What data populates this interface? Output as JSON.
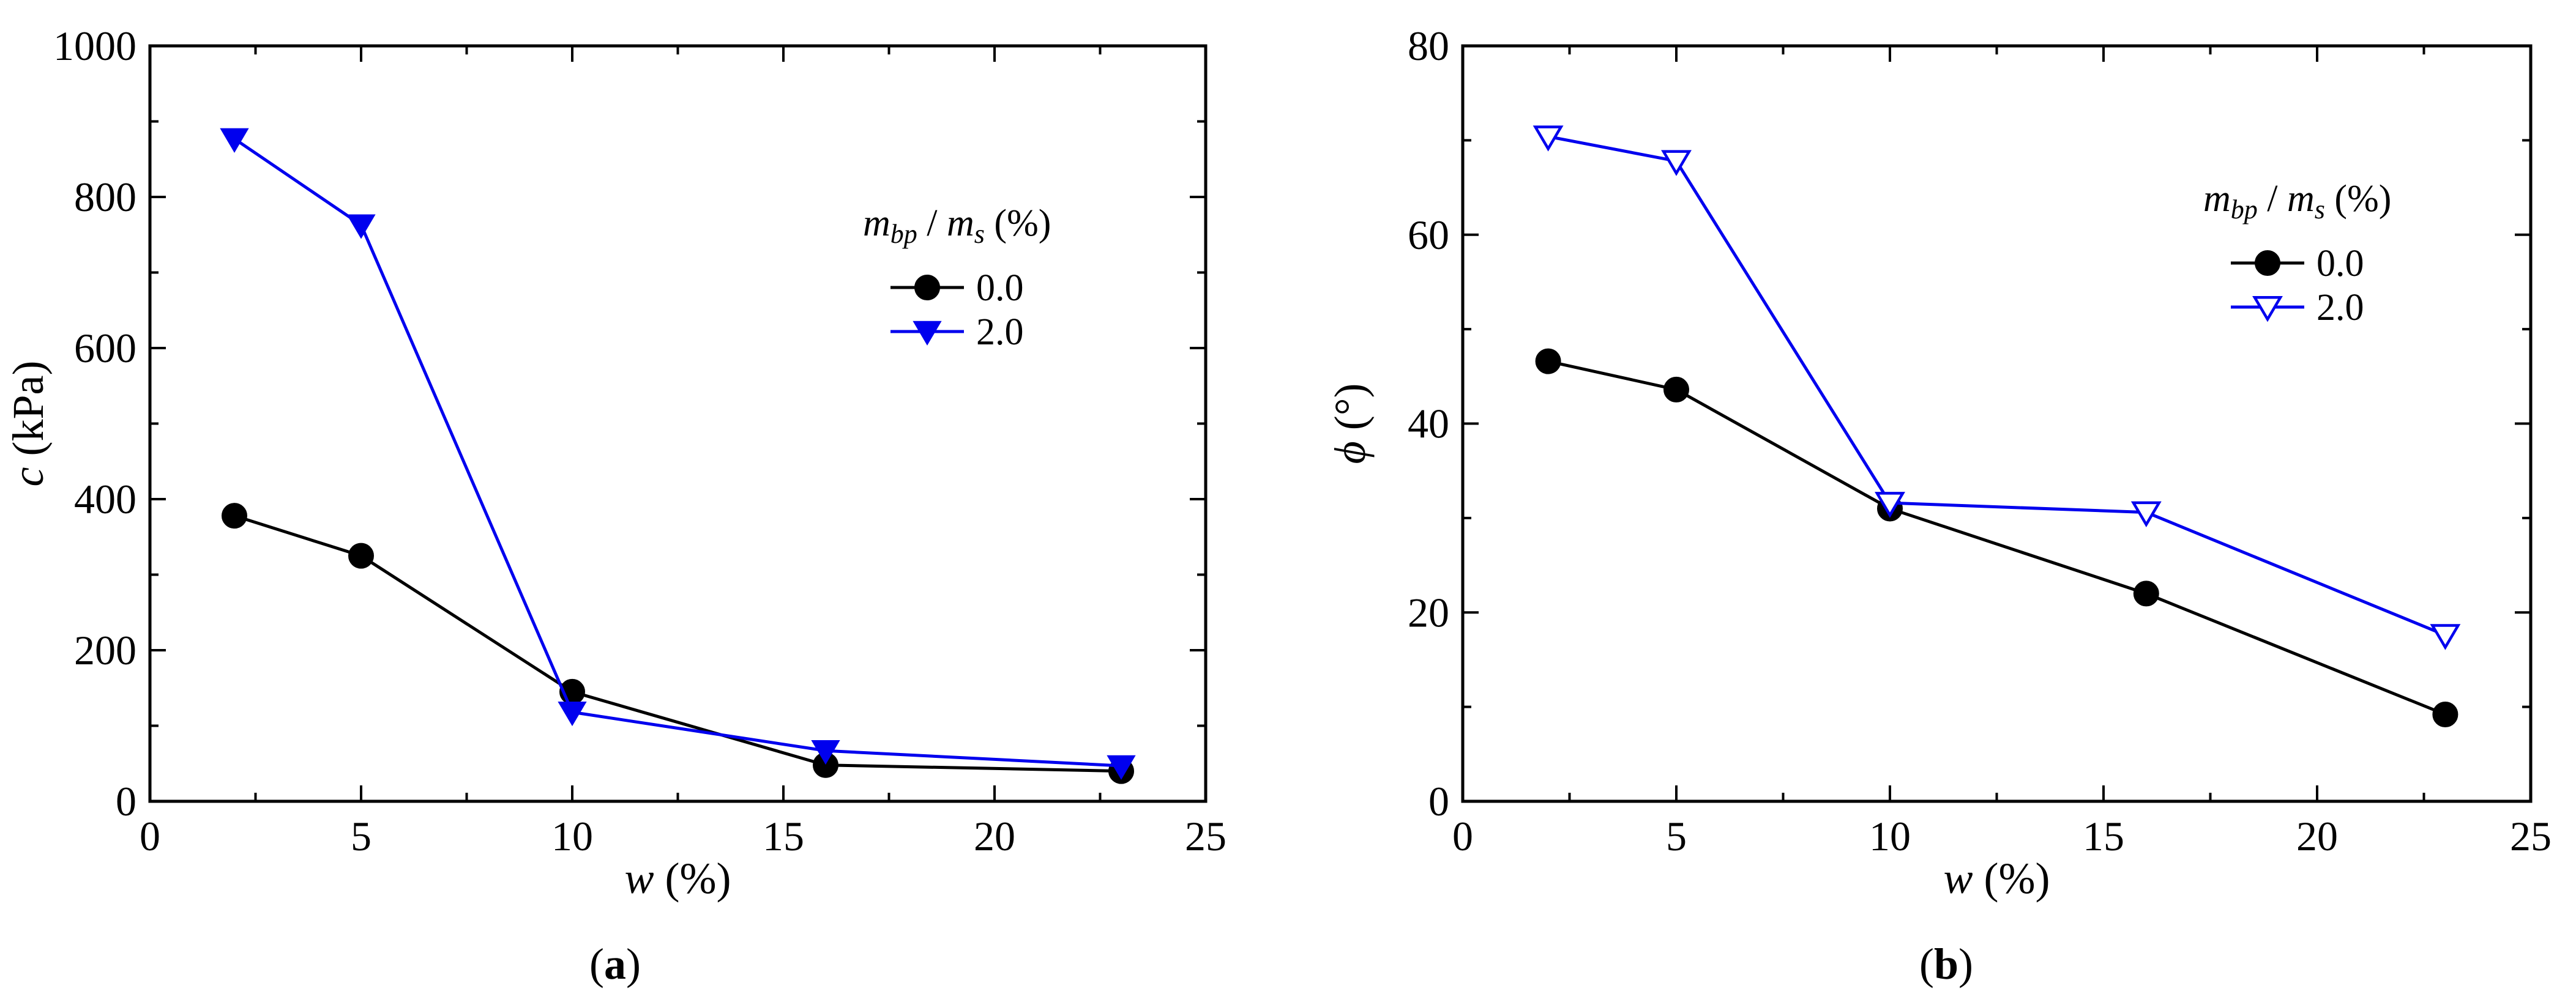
{
  "chart_data": [
    {
      "type": "line",
      "panel": "a",
      "caption_letter": "a",
      "xlabel": {
        "symbol": "w",
        "unit": "(%)"
      },
      "ylabel": {
        "symbol": "c",
        "unit": "(kPa)"
      },
      "xlim": [
        0,
        25
      ],
      "ylim": [
        0,
        1000
      ],
      "x_ticks": [
        0,
        5,
        10,
        15,
        20,
        25
      ],
      "y_ticks": [
        0,
        200,
        400,
        600,
        800,
        1000
      ],
      "legend_title": {
        "m": "m",
        "bp": "bp",
        "slash": "/",
        "ms": "m",
        "s": "s",
        "unit": "(%)"
      },
      "legend_position": "upper-right",
      "series": [
        {
          "name": "0.0",
          "color": "#000000",
          "marker": "circle",
          "filled": true,
          "x": [
            2,
            5,
            10,
            16,
            23
          ],
          "y": [
            378,
            325,
            145,
            48,
            40
          ]
        },
        {
          "name": "2.0",
          "color": "#0000ee",
          "marker": "triangle-down",
          "filled": true,
          "x": [
            2,
            5,
            10,
            16,
            23
          ],
          "y": [
            877,
            763,
            118,
            67,
            47
          ]
        }
      ]
    },
    {
      "type": "line",
      "panel": "b",
      "caption_letter": "b",
      "xlabel": {
        "symbol": "w",
        "unit": "(%)"
      },
      "ylabel": {
        "symbol": "ϕ",
        "unit": "(°)"
      },
      "xlim": [
        0,
        25
      ],
      "ylim": [
        0,
        80
      ],
      "x_ticks": [
        0,
        5,
        10,
        15,
        20,
        25
      ],
      "y_ticks": [
        0,
        20,
        40,
        60,
        80
      ],
      "legend_title": {
        "m": "m",
        "bp": "bp",
        "slash": "/",
        "ms": "m",
        "s": "s",
        "unit": "(%)"
      },
      "legend_position": "upper-right",
      "series": [
        {
          "name": "0.0",
          "color": "#000000",
          "marker": "circle",
          "filled": true,
          "x": [
            2,
            5,
            10,
            16,
            23
          ],
          "y": [
            46.6,
            43.6,
            31.0,
            22.0,
            9.2
          ]
        },
        {
          "name": "2.0",
          "color": "#0000ee",
          "marker": "triangle-down",
          "filled": false,
          "x": [
            2,
            5,
            10,
            16,
            23
          ],
          "y": [
            70.4,
            67.8,
            31.6,
            30.6,
            17.6
          ]
        }
      ]
    }
  ]
}
